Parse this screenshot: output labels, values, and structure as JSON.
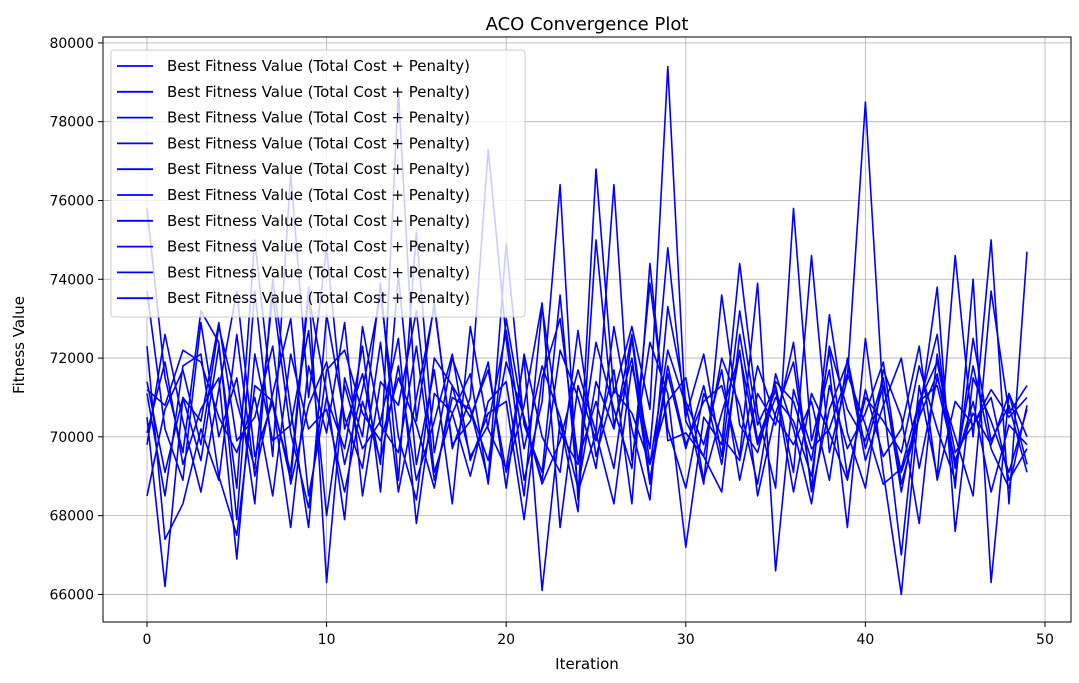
{
  "chart_data": {
    "type": "line",
    "title": "ACO Convergence Plot",
    "xlabel": "Iteration",
    "ylabel": "Fitness Value",
    "xlim": [
      -2.45,
      51.45
    ],
    "ylim": [
      65300,
      80150
    ],
    "xticks": [
      0,
      10,
      20,
      30,
      40,
      50
    ],
    "yticks": [
      66000,
      68000,
      70000,
      72000,
      74000,
      76000,
      78000,
      80000
    ],
    "grid": true,
    "legend_position": "top-left",
    "line_color": "#0000ff",
    "x": [
      0,
      1,
      2,
      3,
      4,
      5,
      6,
      7,
      8,
      9,
      10,
      11,
      12,
      13,
      14,
      15,
      16,
      17,
      18,
      19,
      20,
      21,
      22,
      23,
      24,
      25,
      26,
      27,
      28,
      29,
      30,
      31,
      32,
      33,
      34,
      35,
      36,
      37,
      38,
      39,
      40,
      41,
      42,
      43,
      44,
      45,
      46,
      47,
      48,
      49
    ],
    "series": [
      {
        "name": "Best Fitness Value (Total Cost + Penalty)",
        "values": [
          75800,
          71500,
          69600,
          73200,
          72400,
          67900,
          73700,
          69500,
          76700,
          71000,
          74800,
          70200,
          71600,
          69300,
          78800,
          70400,
          73400,
          69700,
          71000,
          77300,
          72500,
          68900,
          70900,
          76400,
          68400,
          76800,
          71100,
          72800,
          70700,
          79400,
          70500,
          72100,
          69500,
          73200,
          70300,
          71300,
          69100,
          74600,
          69600,
          71500,
          78500,
          70900,
          67000,
          71300,
          69000,
          74600,
          70000,
          75000,
          68300,
          74700
        ]
      },
      {
        "name": "Best Fitness Value (Total Cost + Penalty)",
        "values": [
          70500,
          66200,
          71000,
          69400,
          72300,
          68700,
          75000,
          70800,
          69100,
          73800,
          66300,
          71500,
          70000,
          73900,
          68900,
          75200,
          69600,
          72000,
          70700,
          68900,
          74900,
          70300,
          69100,
          73600,
          68600,
          70100,
          76400,
          69400,
          72400,
          71100,
          67200,
          70500,
          69800,
          74400,
          70600,
          68700,
          75800,
          69900,
          71700,
          67700,
          72500,
          69100,
          66000,
          70800,
          72600,
          68700,
          74000,
          66300,
          71100,
          69300
        ]
      },
      {
        "name": "Best Fitness Value (Total Cost + Penalty)",
        "values": [
          72300,
          67400,
          68300,
          70200,
          68900,
          72600,
          69000,
          71100,
          73000,
          68500,
          71000,
          69700,
          72300,
          68600,
          74100,
          69300,
          71700,
          68300,
          72800,
          70200,
          69200,
          72000,
          66100,
          70400,
          68100,
          75000,
          70300,
          72000,
          68800,
          71600,
          69700,
          71300,
          69300,
          72200,
          68500,
          70600,
          71900,
          68700,
          73100,
          70100,
          68700,
          71700,
          70500,
          67800,
          72100,
          69200,
          71800,
          69700,
          68700,
          70800
        ]
      },
      {
        "name": "Best Fitness Value (Total Cost + Penalty)",
        "values": [
          71200,
          70800,
          72200,
          71900,
          70500,
          69600,
          71000,
          68500,
          72100,
          70200,
          70700,
          68600,
          70900,
          69400,
          71800,
          68900,
          70400,
          72100,
          69400,
          70600,
          70900,
          67900,
          71500,
          73000,
          69400,
          70900,
          69200,
          72500,
          68900,
          71800,
          69800,
          70900,
          71300,
          69500,
          73900,
          66600,
          71200,
          69700,
          70200,
          71600,
          70300,
          68800,
          69200,
          70900,
          71300,
          69400,
          70600,
          69800,
          71100,
          70000
        ]
      },
      {
        "name": "Best Fitness Value (Total Cost + Penalty)",
        "values": [
          68500,
          70700,
          71700,
          69800,
          72800,
          70900,
          69200,
          73600,
          70100,
          68200,
          71700,
          72200,
          70600,
          69900,
          71500,
          70300,
          68700,
          71300,
          70500,
          71700,
          69100,
          70800,
          73400,
          67700,
          71300,
          69900,
          71700,
          68300,
          74400,
          69900,
          70100,
          69500,
          68600,
          72600,
          69900,
          71200,
          68600,
          71100,
          70100,
          68900,
          71200,
          69500,
          70200,
          72300,
          68900,
          70900,
          70300,
          71200,
          70500,
          71000
        ]
      },
      {
        "name": "Best Fitness Value (Total Cost + Penalty)",
        "values": [
          71100,
          68500,
          71800,
          72100,
          69000,
          67500,
          71300,
          70900,
          68900,
          73600,
          71100,
          67900,
          72800,
          70300,
          69600,
          72300,
          68900,
          71000,
          70700,
          69400,
          71900,
          70500,
          68800,
          69900,
          71700,
          70100,
          68300,
          71800,
          69700,
          74800,
          70400,
          69500,
          72000,
          70800,
          68800,
          71600,
          70200,
          68300,
          71300,
          69700,
          70600,
          71900,
          68800,
          70500,
          71600,
          69300,
          70900,
          68600,
          70300,
          69800
        ]
      },
      {
        "name": "Best Fitness Value (Total Cost + Penalty)",
        "values": [
          70100,
          71900,
          69300,
          70700,
          71500,
          66900,
          72100,
          69900,
          70300,
          72700,
          68000,
          71300,
          69700,
          70400,
          72500,
          67800,
          71100,
          70600,
          69000,
          70900,
          71400,
          68500,
          73300,
          70100,
          69300,
          72400,
          70700,
          69200,
          73900,
          70200,
          68700,
          71100,
          70000,
          69400,
          71800,
          70500,
          69800,
          70900,
          68900,
          72000,
          69700,
          71300,
          69100,
          70500,
          73800,
          67600,
          71500,
          70400,
          69100,
          70700
        ]
      },
      {
        "name": "Best Fitness Value (Total Cost + Penalty)",
        "values": [
          73700,
          70200,
          68900,
          72900,
          70000,
          71500,
          68300,
          74000,
          70700,
          67700,
          73100,
          70500,
          69200,
          72400,
          68600,
          71000,
          73300,
          69800,
          70400,
          71900,
          68700,
          72100,
          70000,
          69100,
          72700,
          69500,
          71200,
          70600,
          69300,
          72200,
          70800,
          68800,
          73600,
          70300,
          69600,
          71400,
          70900,
          69400,
          72200,
          69000,
          71000,
          70400,
          69600,
          71800,
          70200,
          68900,
          72500,
          69900,
          70800,
          69100
        ]
      },
      {
        "name": "Best Fitness Value (Total Cost + Penalty)",
        "values": [
          69800,
          72600,
          70400,
          68600,
          71200,
          73700,
          69500,
          70900,
          67700,
          71800,
          70100,
          72900,
          68500,
          71400,
          70800,
          73200,
          69100,
          70600,
          71600,
          68800,
          73000,
          70400,
          68900,
          72200,
          71000,
          69200,
          72800,
          70200,
          68400,
          73300,
          70900,
          69800,
          71700,
          68900,
          71100,
          70300,
          72400,
          68600,
          70700,
          71900,
          69400,
          70800,
          72000,
          69200,
          71500,
          70000,
          68500,
          73700,
          70600,
          71300
        ]
      },
      {
        "name": "Best Fitness Value (Total Cost + Penalty)",
        "values": [
          71400,
          69100,
          71000,
          70400,
          72900,
          69900,
          70500,
          72300,
          68800,
          70800,
          71900,
          69300,
          71200,
          73600,
          70000,
          68400,
          72000,
          71300,
          69500,
          70300,
          72700,
          69700,
          71800,
          70500,
          68700,
          71400,
          70200,
          72600,
          69300,
          70900,
          71500,
          68900,
          70600,
          72100,
          69800,
          71000,
          70400,
          69000,
          72300,
          70700,
          69900,
          71500,
          68600,
          70900,
          71900,
          69600,
          70300,
          71000,
          68900,
          69700
        ]
      }
    ]
  }
}
